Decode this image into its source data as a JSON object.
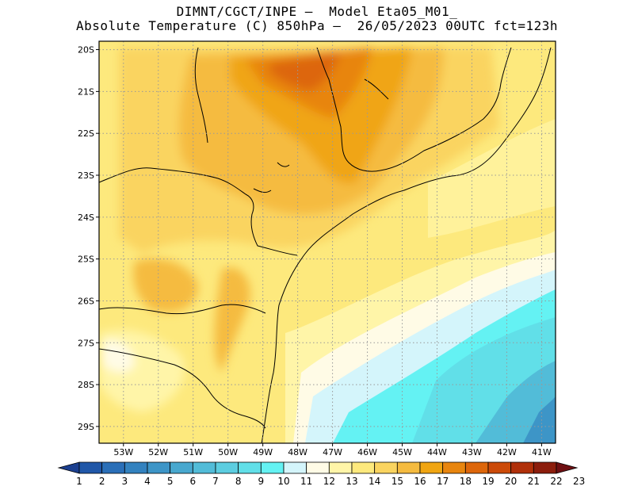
{
  "title": {
    "line1": "DIMNT/CGCT/INPE –  Model Eta05_M01_",
    "line2": "Absolute Temperature (C) 850hPa –  26/05/2023 00UTC fct=123h"
  },
  "map": {
    "lon_range": [
      -53.7,
      -40.6
    ],
    "lat_range": [
      -29.4,
      -19.8
    ],
    "lon_ticks": [
      "53W",
      "52W",
      "51W",
      "50W",
      "49W",
      "48W",
      "47W",
      "46W",
      "45W",
      "44W",
      "43W",
      "42W",
      "41W"
    ],
    "lat_ticks": [
      "20S",
      "21S",
      "22S",
      "23S",
      "24S",
      "25S",
      "26S",
      "27S",
      "28S",
      "29S"
    ],
    "grid": true,
    "grid_style": "dotted"
  },
  "colorbar": {
    "labels": [
      "1",
      "2",
      "3",
      "4",
      "5",
      "6",
      "7",
      "8",
      "9",
      "10",
      "11",
      "12",
      "13",
      "14",
      "15",
      "16",
      "17",
      "18",
      "19",
      "20",
      "21",
      "22",
      "23"
    ],
    "colors": [
      "#1b3f8f",
      "#2057a8",
      "#2a6fb8",
      "#3382bf",
      "#3d95c7",
      "#48a8cf",
      "#52bcd8",
      "#5ccde0",
      "#61dfe8",
      "#64f2f3",
      "#d4f5fb",
      "#fffbe6",
      "#fff5a8",
      "#fde97d",
      "#fad460",
      "#f5bb40",
      "#f0a512",
      "#e8850e",
      "#dd660a",
      "#cc4a08",
      "#b0300a",
      "#8c1d0c",
      "#6e0f12"
    ],
    "orientation": "horizontal",
    "position": "bottom"
  },
  "colors": {
    "coastline": "#000000",
    "gridline": "#999999",
    "frame": "#000000"
  }
}
